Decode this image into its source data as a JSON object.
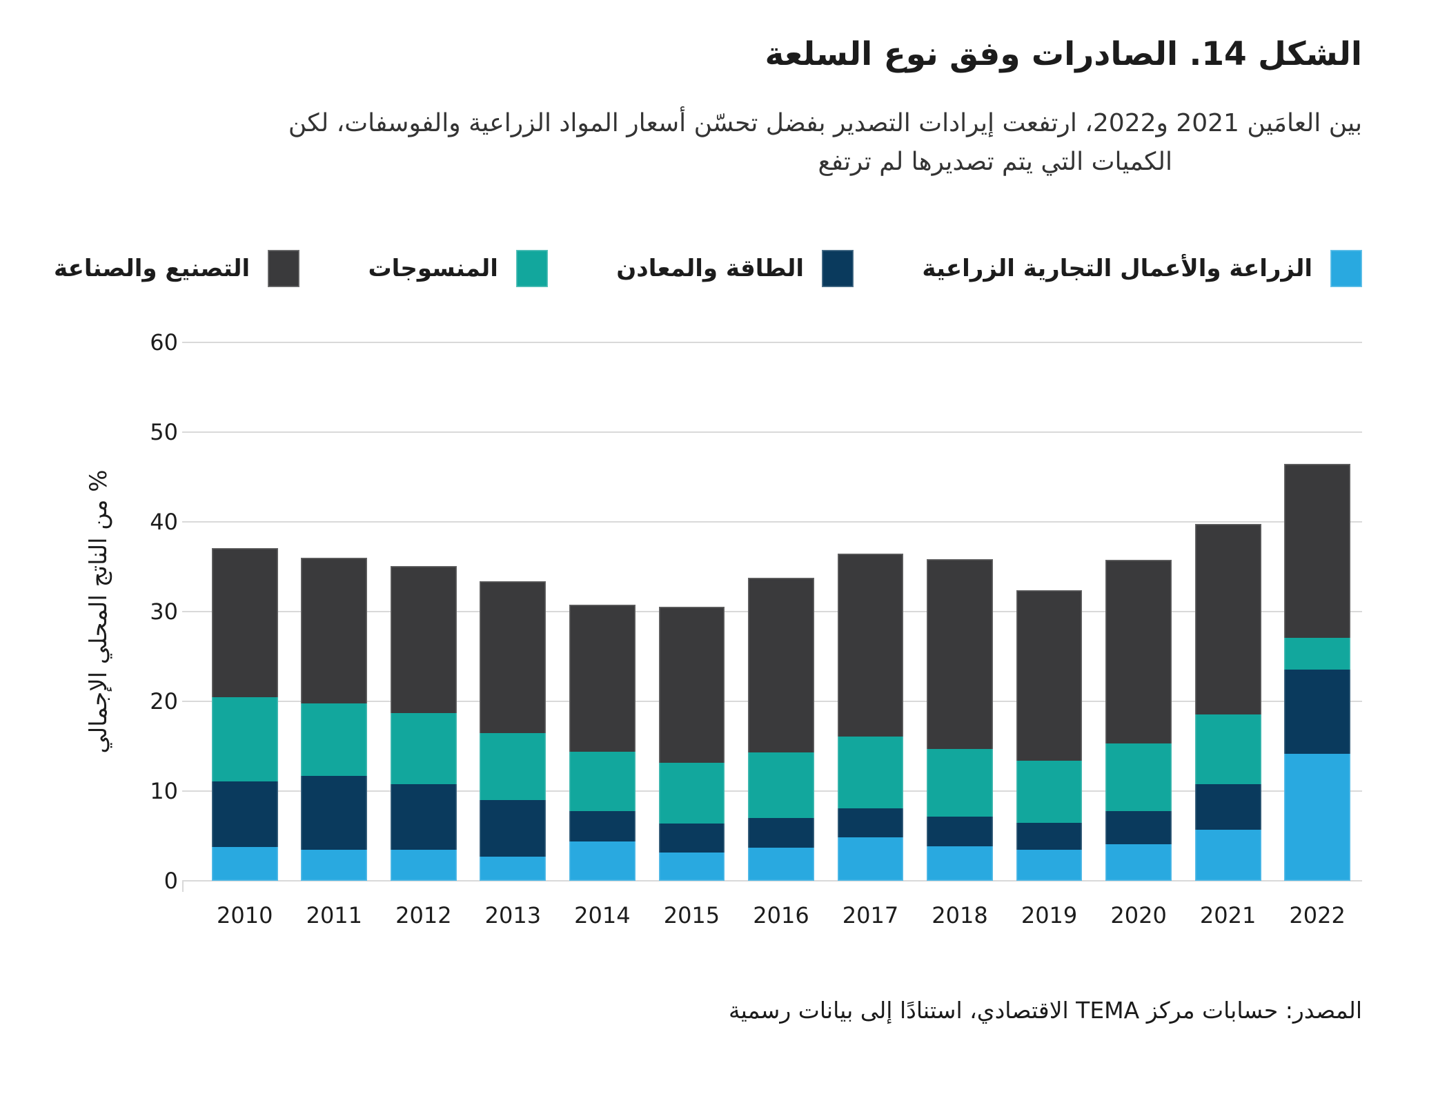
{
  "figure": {
    "title": "الشكل 14. الصادرات وفق نوع السلعة",
    "subtitle_line1": "بين العامَين 2021 و2022، ارتفعت إيرادات التصدير بفضل تحسّن أسعار المواد الزراعية والفوسفات، لكن",
    "subtitle_line2": "الكميات التي يتم تصديرها لم ترتفع",
    "source": "المصدر: حسابات مركز TEMA الاقتصادي، استنادًا إلى بيانات رسمية"
  },
  "chart_data": {
    "type": "bar",
    "stacked": true,
    "categories": [
      "2010",
      "2011",
      "2012",
      "2013",
      "2014",
      "2015",
      "2016",
      "2017",
      "2018",
      "2019",
      "2020",
      "2021",
      "2022"
    ],
    "series": [
      {
        "name": "الزراعة والأعمال التجارية الزراعية",
        "color": "#29A9E0",
        "values": [
          3.8,
          3.5,
          3.5,
          2.7,
          4.4,
          3.2,
          3.7,
          4.9,
          3.9,
          3.5,
          4.1,
          5.7,
          14.2
        ]
      },
      {
        "name": "الطاقة والمعادن",
        "color": "#0A3A5D",
        "values": [
          7.3,
          8.2,
          7.3,
          6.3,
          3.4,
          3.2,
          3.3,
          3.2,
          3.3,
          3.0,
          3.7,
          5.1,
          9.4
        ]
      },
      {
        "name": "المنسوجات",
        "color": "#12A79D",
        "values": [
          9.4,
          8.1,
          7.9,
          7.5,
          6.6,
          6.8,
          7.3,
          8.0,
          7.5,
          6.9,
          7.5,
          7.8,
          3.5
        ]
      },
      {
        "name": "التصنيع والصناعة",
        "color": "#3A3A3C",
        "values": [
          16.6,
          16.2,
          16.4,
          16.9,
          16.4,
          17.4,
          19.5,
          20.4,
          21.2,
          19.0,
          20.5,
          21.2,
          19.4
        ]
      }
    ],
    "totals": [
      37.1,
      36.0,
      35.1,
      33.4,
      30.8,
      30.6,
      33.8,
      36.5,
      35.9,
      32.4,
      35.8,
      39.8,
      46.5
    ],
    "ylabel": "% من الناتج المحلي الإجمالي",
    "ylim": [
      0,
      60
    ],
    "ytick_step": 10,
    "yticks": [
      0,
      10,
      20,
      30,
      40,
      50,
      60
    ],
    "grid": true,
    "legend_position": "top",
    "gridline_color": "#D9D9D9",
    "text_color": "#1C1C1C",
    "background_color": "#FFFFFF"
  }
}
